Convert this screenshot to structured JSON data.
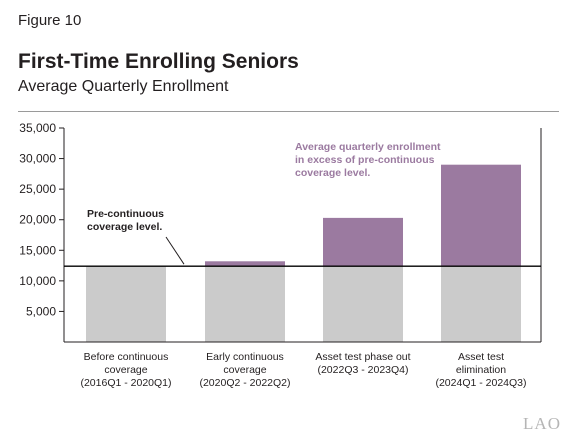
{
  "figure_label": "Figure 10",
  "title": "First-Time Enrolling Seniors",
  "subtitle": "Average Quarterly Enrollment",
  "logo": "LAO",
  "chart_data": {
    "type": "bar",
    "stacked": true,
    "categories": [
      [
        "Before continuous",
        "coverage",
        "(2016Q1 - 2020Q1)"
      ],
      [
        "Early continuous",
        "coverage",
        "(2020Q2 - 2022Q2)"
      ],
      [
        "Asset test phase out",
        "(2022Q3 - 2023Q4)"
      ],
      [
        "Asset test",
        "elimination",
        "(2024Q1 - 2024Q3)"
      ]
    ],
    "baseline": 12400,
    "totals": [
      12400,
      13200,
      20300,
      29000
    ],
    "series": [
      {
        "name": "Pre-continuous coverage level",
        "color": "#cbcbcb",
        "values": [
          12400,
          12400,
          12400,
          12400
        ]
      },
      {
        "name": "Average quarterly enrollment in excess of pre-continuous coverage level",
        "color": "#9b7aa0",
        "values": [
          0,
          800,
          7900,
          16600
        ]
      }
    ],
    "ylim": [
      0,
      35000
    ],
    "yticks": [
      "5,000",
      "10,000",
      "15,000",
      "20,000",
      "25,000",
      "30,000",
      "35,000"
    ],
    "ytick_values": [
      5000,
      10000,
      15000,
      20000,
      25000,
      30000,
      35000
    ],
    "grid": false,
    "annotations": {
      "excess": [
        "Average quarterly enrollment",
        "in excess of pre-continuous",
        "coverage level."
      ],
      "baseline": [
        "Pre-continuous",
        "coverage level."
      ]
    },
    "colors": {
      "annotation_excess": "#9b7aa0",
      "axis": "#231f20",
      "baseline_line": "#000000"
    }
  }
}
